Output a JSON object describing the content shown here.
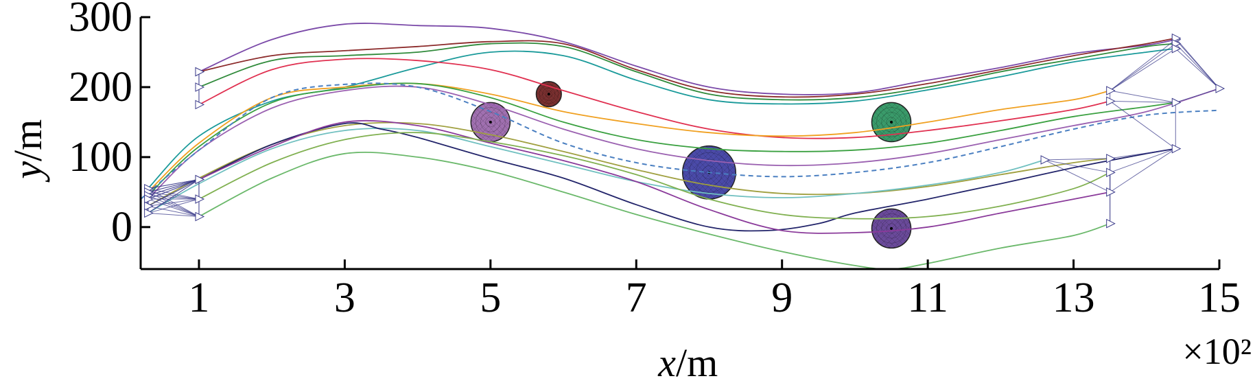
{
  "chart_data": {
    "type": "line",
    "title": "",
    "xlabel_var": "x",
    "xlabel_unit": "/m",
    "ylabel_var": "y",
    "ylabel_unit": "/m",
    "x_multiplier": "×10²",
    "xlim": [
      0.2,
      15
    ],
    "ylim": [
      -60,
      300
    ],
    "xticks": [
      1,
      3,
      5,
      7,
      9,
      11,
      13,
      15
    ],
    "xtick_labels": [
      "1",
      "3",
      "5",
      "7",
      "9",
      "11",
      "13",
      "15"
    ],
    "yticks": [
      0,
      100,
      200,
      300
    ],
    "ytick_labels": [
      "0",
      "100",
      "200",
      "300"
    ],
    "grid": false,
    "legend": "none",
    "reference_path": {
      "style": "dashed",
      "color": "#4a7fc1",
      "points": [
        [
          0.2,
          40
        ],
        [
          1,
          110
        ],
        [
          2,
          185
        ],
        [
          3,
          204
        ],
        [
          4,
          200
        ],
        [
          5,
          165
        ],
        [
          6,
          120
        ],
        [
          7,
          92
        ],
        [
          8,
          78
        ],
        [
          9,
          72
        ],
        [
          10,
          78
        ],
        [
          11,
          92
        ],
        [
          12,
          115
        ],
        [
          13,
          140
        ],
        [
          14,
          160
        ],
        [
          15,
          167
        ]
      ]
    },
    "obstacles": [
      {
        "x": 5.0,
        "y": 150,
        "r": 28,
        "color": "#a070b0"
      },
      {
        "x": 5.8,
        "y": 190,
        "r": 18,
        "color": "#7a3030"
      },
      {
        "x": 8.0,
        "y": 78,
        "r": 38,
        "color": "#4a4aa8"
      },
      {
        "x": 10.5,
        "y": 150,
        "r": 28,
        "color": "#3a9a6a"
      },
      {
        "x": 10.5,
        "y": -2,
        "r": 28,
        "color": "#6a4a9a"
      }
    ],
    "series": [
      {
        "color": "#7a49a8",
        "points": [
          [
            1,
            222
          ],
          [
            2,
            268
          ],
          [
            3,
            290
          ],
          [
            4,
            288
          ],
          [
            5,
            284
          ],
          [
            6,
            265
          ],
          [
            7,
            230
          ],
          [
            8,
            200
          ],
          [
            9,
            190
          ],
          [
            10,
            192
          ],
          [
            11,
            210
          ],
          [
            12,
            228
          ],
          [
            13,
            248
          ],
          [
            14,
            260
          ],
          [
            14.4,
            268
          ]
        ]
      },
      {
        "color": "#8b2a2a",
        "points": [
          [
            1,
            222
          ],
          [
            2,
            245
          ],
          [
            3,
            252
          ],
          [
            4,
            258
          ],
          [
            5,
            265
          ],
          [
            6,
            262
          ],
          [
            7,
            225
          ],
          [
            8,
            195
          ],
          [
            9,
            186
          ],
          [
            10,
            190
          ],
          [
            11,
            205
          ],
          [
            12,
            225
          ],
          [
            13,
            245
          ],
          [
            14,
            262
          ],
          [
            14.4,
            270
          ]
        ]
      },
      {
        "color": "#2f8a3a",
        "points": [
          [
            1,
            200
          ],
          [
            2,
            238
          ],
          [
            3,
            245
          ],
          [
            4,
            250
          ],
          [
            5,
            262
          ],
          [
            6,
            258
          ],
          [
            7,
            222
          ],
          [
            8,
            190
          ],
          [
            9,
            182
          ],
          [
            10,
            185
          ],
          [
            11,
            200
          ],
          [
            12,
            222
          ],
          [
            13,
            240
          ],
          [
            14,
            258
          ],
          [
            14.4,
            262
          ]
        ]
      },
      {
        "color": "#1a9a9a",
        "points": [
          [
            0.3,
            55
          ],
          [
            1,
            130
          ],
          [
            2,
            180
          ],
          [
            3,
            200
          ],
          [
            4,
            228
          ],
          [
            5,
            250
          ],
          [
            6,
            245
          ],
          [
            7,
            210
          ],
          [
            8,
            182
          ],
          [
            9,
            176
          ],
          [
            10,
            180
          ],
          [
            11,
            196
          ],
          [
            12,
            215
          ],
          [
            13,
            236
          ],
          [
            14,
            250
          ],
          [
            14.4,
            255
          ]
        ]
      },
      {
        "color": "#e03050",
        "points": [
          [
            1,
            175
          ],
          [
            2,
            225
          ],
          [
            3,
            240
          ],
          [
            4,
            238
          ],
          [
            5,
            225
          ],
          [
            6,
            195
          ],
          [
            7,
            165
          ],
          [
            8,
            140
          ],
          [
            9,
            128
          ],
          [
            10,
            128
          ],
          [
            11,
            138
          ],
          [
            12,
            152
          ],
          [
            13,
            168
          ],
          [
            13.5,
            180
          ]
        ]
      },
      {
        "color": "#f0a020",
        "points": [
          [
            0.3,
            50
          ],
          [
            1,
            120
          ],
          [
            2,
            185
          ],
          [
            3,
            200
          ],
          [
            4,
            205
          ],
          [
            5,
            190
          ],
          [
            6,
            165
          ],
          [
            7,
            148
          ],
          [
            8,
            135
          ],
          [
            9,
            130
          ],
          [
            10,
            135
          ],
          [
            11,
            150
          ],
          [
            12,
            168
          ],
          [
            13,
            182
          ],
          [
            13.5,
            195
          ]
        ]
      },
      {
        "color": "#3aa040",
        "points": [
          [
            0.3,
            45
          ],
          [
            1,
            115
          ],
          [
            2,
            178
          ],
          [
            3,
            198
          ],
          [
            4,
            205
          ],
          [
            5,
            185
          ],
          [
            6,
            150
          ],
          [
            7,
            125
          ],
          [
            8,
            112
          ],
          [
            9,
            108
          ],
          [
            10,
            110
          ],
          [
            11,
            120
          ],
          [
            12,
            138
          ],
          [
            13,
            158
          ],
          [
            14,
            172
          ],
          [
            14.4,
            178
          ]
        ]
      },
      {
        "color": "#9a60b0",
        "points": [
          [
            0.3,
            40
          ],
          [
            1,
            110
          ],
          [
            2,
            170
          ],
          [
            3,
            195
          ],
          [
            4,
            200
          ],
          [
            5,
            175
          ],
          [
            6,
            140
          ],
          [
            7,
            112
          ],
          [
            8,
            95
          ],
          [
            9,
            88
          ],
          [
            10,
            92
          ],
          [
            11,
            105
          ],
          [
            12,
            125
          ],
          [
            13,
            145
          ],
          [
            14,
            165
          ],
          [
            15,
            198
          ]
        ]
      },
      {
        "color": "#a0a040",
        "points": [
          [
            0.3,
            30
          ],
          [
            1,
            70
          ],
          [
            2,
            118
          ],
          [
            3,
            145
          ],
          [
            4,
            148
          ],
          [
            5,
            132
          ],
          [
            6,
            108
          ],
          [
            7,
            82
          ],
          [
            8,
            60
          ],
          [
            9,
            48
          ],
          [
            10,
            48
          ],
          [
            11,
            58
          ],
          [
            12,
            75
          ],
          [
            13,
            92
          ],
          [
            13.5,
            98
          ]
        ]
      },
      {
        "color": "#70c0c0",
        "points": [
          [
            0.3,
            20
          ],
          [
            1,
            62
          ],
          [
            2,
            112
          ],
          [
            3,
            138
          ],
          [
            4,
            138
          ],
          [
            5,
            115
          ],
          [
            6,
            90
          ],
          [
            7,
            65
          ],
          [
            8,
            48
          ],
          [
            9,
            42
          ],
          [
            10,
            48
          ],
          [
            11,
            60
          ],
          [
            12,
            78
          ],
          [
            12.6,
            96
          ]
        ]
      },
      {
        "color": "#22246a",
        "points": [
          [
            1,
            68
          ],
          [
            2,
            118
          ],
          [
            3,
            148
          ],
          [
            3.5,
            140
          ],
          [
            4,
            128
          ],
          [
            5,
            98
          ],
          [
            6,
            70
          ],
          [
            7,
            32
          ],
          [
            8,
            0
          ],
          [
            8.8,
            -5
          ],
          [
            9.5,
            5
          ],
          [
            10,
            20
          ],
          [
            11,
            40
          ],
          [
            12,
            62
          ],
          [
            13,
            85
          ],
          [
            14,
            105
          ],
          [
            14.4,
            112
          ]
        ]
      },
      {
        "color": "#8a3a9a",
        "points": [
          [
            1,
            68
          ],
          [
            2,
            115
          ],
          [
            3,
            150
          ],
          [
            4,
            145
          ],
          [
            5,
            120
          ],
          [
            6,
            95
          ],
          [
            7,
            65
          ],
          [
            8,
            25
          ],
          [
            9,
            -5
          ],
          [
            10,
            -8
          ],
          [
            11,
            0
          ],
          [
            12,
            20
          ],
          [
            13,
            40
          ],
          [
            13.5,
            50
          ]
        ]
      },
      {
        "color": "#80b050",
        "points": [
          [
            1,
            40
          ],
          [
            2,
            92
          ],
          [
            3,
            125
          ],
          [
            4,
            135
          ],
          [
            5,
            122
          ],
          [
            6,
            102
          ],
          [
            7,
            75
          ],
          [
            8,
            40
          ],
          [
            9,
            18
          ],
          [
            10,
            12
          ],
          [
            11,
            15
          ],
          [
            12,
            30
          ],
          [
            13,
            55
          ],
          [
            13.5,
            78
          ]
        ]
      },
      {
        "color": "#6ab86a",
        "points": [
          [
            1,
            15
          ],
          [
            2,
            70
          ],
          [
            3,
            105
          ],
          [
            4,
            100
          ],
          [
            5,
            80
          ],
          [
            6,
            50
          ],
          [
            7,
            18
          ],
          [
            8,
            -10
          ],
          [
            9,
            -35
          ],
          [
            10,
            -55
          ],
          [
            10.5,
            -60
          ],
          [
            11,
            -52
          ],
          [
            12,
            -30
          ],
          [
            13,
            -12
          ],
          [
            13.5,
            5
          ]
        ]
      }
    ]
  }
}
